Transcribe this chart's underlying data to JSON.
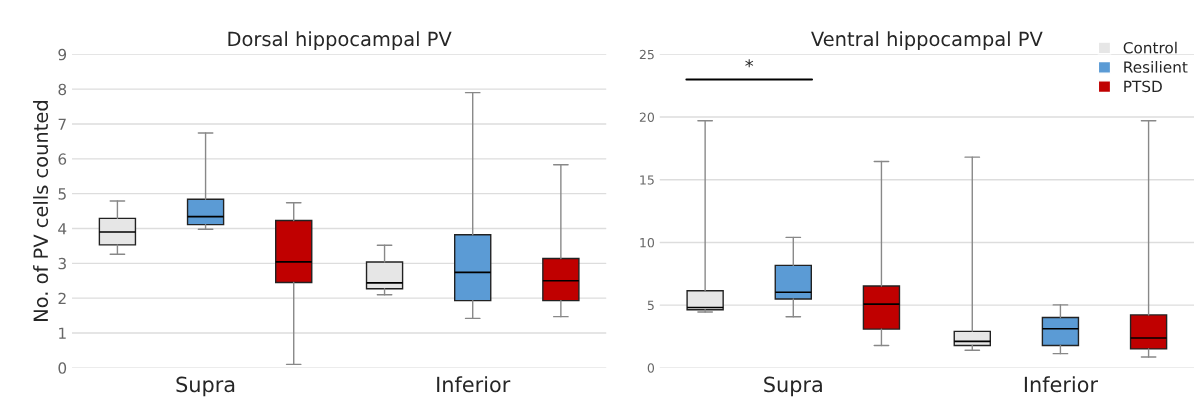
{
  "chart_data": [
    {
      "type": "box",
      "title": "Dorsal hippocampal PV",
      "ylabel": "No. of PV cells counted",
      "categories": [
        "Supra",
        "Inferior"
      ],
      "ylim": [
        0,
        9
      ],
      "yticks": [
        0,
        1,
        2,
        3,
        4,
        5,
        6,
        7,
        8,
        9
      ],
      "grid": "y",
      "series": [
        {
          "color": "#e6e6e6",
          "boxes": [
            {
              "low": 3.26,
              "q1": 3.53,
              "median": 3.9,
              "q3": 4.29,
              "high": 4.79
            },
            {
              "low": 2.1,
              "q1": 2.27,
              "median": 2.44,
              "q3": 3.04,
              "high": 3.52
            }
          ]
        },
        {
          "color": "#5b9bd5",
          "boxes": [
            {
              "low": 3.98,
              "q1": 4.11,
              "median": 4.34,
              "q3": 4.84,
              "high": 6.74
            },
            {
              "low": 1.42,
              "q1": 1.93,
              "median": 2.74,
              "q3": 3.82,
              "high": 7.9
            }
          ]
        },
        {
          "color": "#c00000",
          "boxes": [
            {
              "low": 0.1,
              "q1": 2.45,
              "median": 3.04,
              "q3": 4.23,
              "high": 4.74
            },
            {
              "low": 1.47,
              "q1": 1.93,
              "median": 2.5,
              "q3": 3.14,
              "high": 5.83
            }
          ]
        }
      ]
    },
    {
      "type": "box",
      "title": "Ventral hippocampal PV",
      "categories": [
        "Supra",
        "Inferior"
      ],
      "ylim": [
        0,
        25
      ],
      "yticks": [
        0,
        5,
        10,
        15,
        20,
        25
      ],
      "grid": "y",
      "legend": "top right",
      "annotations": [
        "*"
      ],
      "series": [
        {
          "name": "Control",
          "color": "#e6e6e6",
          "boxes": [
            {
              "low": 4.45,
              "q1": 4.63,
              "median": 4.81,
              "q3": 6.15,
              "high": 19.7
            },
            {
              "low": 1.4,
              "q1": 1.78,
              "median": 2.11,
              "q3": 2.91,
              "high": 16.8
            }
          ]
        },
        {
          "name": "Resilient",
          "color": "#5b9bd5",
          "boxes": [
            {
              "low": 4.07,
              "q1": 5.49,
              "median": 6.03,
              "q3": 8.17,
              "high": 10.4
            },
            {
              "low": 1.13,
              "q1": 1.78,
              "median": 3.12,
              "q3": 4.01,
              "high": 5.02
            }
          ]
        },
        {
          "name": "PTSD",
          "color": "#c00000",
          "boxes": [
            {
              "low": 1.78,
              "q1": 3.09,
              "median": 5.08,
              "q3": 6.53,
              "high": 16.45
            },
            {
              "low": 0.86,
              "q1": 1.51,
              "median": 2.38,
              "q3": 4.22,
              "high": 19.7
            }
          ]
        }
      ]
    }
  ]
}
